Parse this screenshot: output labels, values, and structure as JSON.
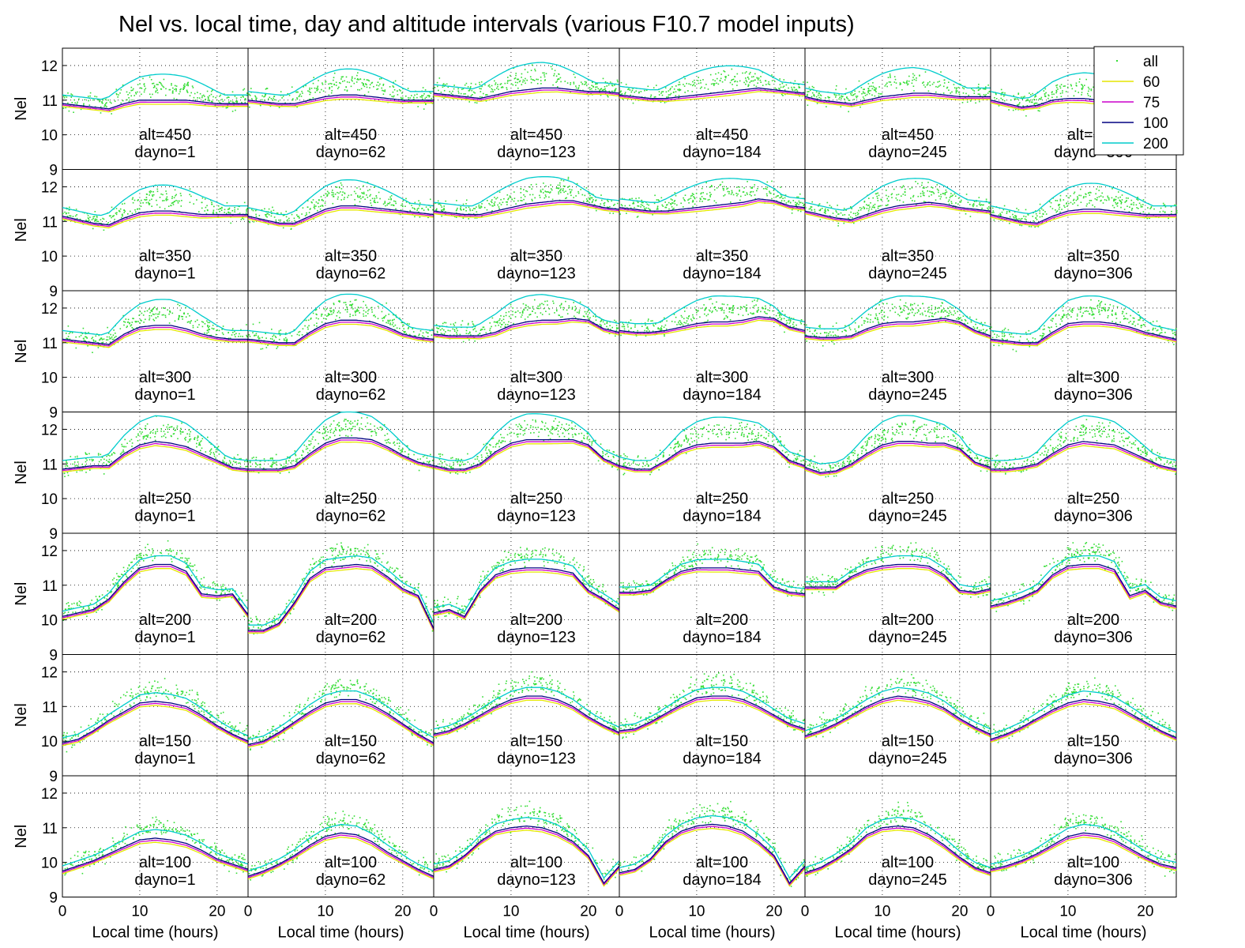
{
  "chart_data": {
    "type": "line",
    "title": "Nel vs. local time, day and altitude intervals (various F10.7 model inputs)",
    "ylabel": "Nel",
    "xlabel": "Local time (hours)",
    "xlim": [
      0,
      24
    ],
    "ylim": [
      9,
      12.5
    ],
    "xticks": [
      "0",
      "10",
      "20"
    ],
    "yticks": [
      "9",
      "10",
      "11",
      "12"
    ],
    "grid": true,
    "legend": {
      "position": "top-right",
      "entries": [
        {
          "label": "all",
          "color": "#33dd33",
          "style": "dot"
        },
        {
          "label": "60",
          "color": "#e6e600",
          "style": "line"
        },
        {
          "label": "75",
          "color": "#cc00cc",
          "style": "line"
        },
        {
          "label": "100",
          "color": "#000080",
          "style": "line"
        },
        {
          "label": "200",
          "color": "#00cccc",
          "style": "line"
        }
      ]
    },
    "series_colors": {
      "all": "#33dd33",
      "60": "#e6e600",
      "75": "#cc00cc",
      "100": "#000080",
      "200": "#00cccc"
    },
    "panel_label_format": {
      "alt": "alt=",
      "dayno": "dayno="
    },
    "altitudes": [
      450,
      350,
      300,
      250,
      200,
      150,
      100
    ],
    "daynos": [
      1,
      62,
      123,
      184,
      245,
      306
    ],
    "x": [
      0,
      2,
      4,
      6,
      8,
      10,
      12,
      14,
      16,
      18,
      20,
      22,
      24
    ],
    "curves_100": [
      [
        [
          10.9,
          10.85,
          10.8,
          10.75,
          10.9,
          11.0,
          11.0,
          11.0,
          11.0,
          10.95,
          10.9,
          10.9,
          10.9
        ],
        [
          11.0,
          10.95,
          10.9,
          10.9,
          11.0,
          11.1,
          11.15,
          11.15,
          11.1,
          11.05,
          11.0,
          11.0,
          11.0
        ],
        [
          11.2,
          11.15,
          11.1,
          11.05,
          11.15,
          11.25,
          11.3,
          11.35,
          11.35,
          11.3,
          11.25,
          11.25,
          11.2
        ],
        [
          11.15,
          11.1,
          11.05,
          11.05,
          11.1,
          11.15,
          11.2,
          11.25,
          11.3,
          11.35,
          11.3,
          11.25,
          11.2
        ],
        [
          11.1,
          11.0,
          10.95,
          10.9,
          11.0,
          11.1,
          11.15,
          11.2,
          11.2,
          11.15,
          11.1,
          11.1,
          11.1
        ],
        [
          11.0,
          10.9,
          10.8,
          10.85,
          11.0,
          11.05,
          11.05,
          11.0,
          11.0,
          11.0,
          11.0,
          11.0,
          11.0
        ]
      ],
      [
        [
          11.15,
          11.05,
          10.95,
          10.9,
          11.1,
          11.25,
          11.3,
          11.3,
          11.25,
          11.2,
          11.2,
          11.2,
          11.2
        ],
        [
          11.15,
          11.05,
          10.95,
          10.95,
          11.15,
          11.35,
          11.45,
          11.45,
          11.4,
          11.35,
          11.3,
          11.25,
          11.2
        ],
        [
          11.3,
          11.25,
          11.2,
          11.2,
          11.3,
          11.4,
          11.5,
          11.55,
          11.6,
          11.6,
          11.5,
          11.4,
          11.35
        ],
        [
          11.4,
          11.35,
          11.3,
          11.3,
          11.35,
          11.4,
          11.45,
          11.5,
          11.55,
          11.65,
          11.6,
          11.45,
          11.4
        ],
        [
          11.3,
          11.2,
          11.1,
          11.05,
          11.2,
          11.35,
          11.45,
          11.5,
          11.55,
          11.5,
          11.4,
          11.35,
          11.3
        ],
        [
          11.2,
          11.1,
          11.0,
          10.95,
          11.15,
          11.3,
          11.35,
          11.35,
          11.3,
          11.25,
          11.2,
          11.2,
          11.2
        ]
      ],
      [
        [
          11.1,
          11.05,
          11.0,
          10.95,
          11.25,
          11.45,
          11.5,
          11.5,
          11.4,
          11.25,
          11.15,
          11.1,
          11.1
        ],
        [
          11.1,
          11.05,
          11.0,
          11.0,
          11.3,
          11.55,
          11.65,
          11.65,
          11.6,
          11.45,
          11.25,
          11.15,
          11.1
        ],
        [
          11.25,
          11.2,
          11.2,
          11.2,
          11.3,
          11.5,
          11.6,
          11.65,
          11.65,
          11.7,
          11.65,
          11.4,
          11.3
        ],
        [
          11.35,
          11.3,
          11.3,
          11.35,
          11.45,
          11.55,
          11.6,
          11.6,
          11.65,
          11.75,
          11.7,
          11.45,
          11.35
        ],
        [
          11.2,
          11.15,
          11.15,
          11.2,
          11.4,
          11.55,
          11.6,
          11.6,
          11.65,
          11.7,
          11.6,
          11.35,
          11.2
        ],
        [
          11.1,
          11.05,
          11.0,
          11.0,
          11.3,
          11.55,
          11.6,
          11.6,
          11.55,
          11.45,
          11.3,
          11.2,
          11.1
        ]
      ],
      [
        [
          10.85,
          10.9,
          10.95,
          10.95,
          11.3,
          11.55,
          11.65,
          11.6,
          11.5,
          11.3,
          11.1,
          10.9,
          10.85
        ],
        [
          10.85,
          10.85,
          10.85,
          10.95,
          11.3,
          11.6,
          11.75,
          11.75,
          11.7,
          11.5,
          11.25,
          11.05,
          10.95
        ],
        [
          10.95,
          10.85,
          10.85,
          11.0,
          11.35,
          11.6,
          11.7,
          11.7,
          11.7,
          11.7,
          11.55,
          11.15,
          10.95
        ],
        [
          10.95,
          10.85,
          10.85,
          11.1,
          11.4,
          11.55,
          11.6,
          11.6,
          11.6,
          11.65,
          11.5,
          11.1,
          10.95
        ],
        [
          10.9,
          10.75,
          10.8,
          11.0,
          11.3,
          11.55,
          11.65,
          11.65,
          11.6,
          11.6,
          11.45,
          11.05,
          10.9
        ],
        [
          10.85,
          10.85,
          10.9,
          11.0,
          11.3,
          11.55,
          11.65,
          11.6,
          11.55,
          11.35,
          11.15,
          10.95,
          10.85
        ]
      ],
      [
        [
          10.1,
          10.2,
          10.3,
          10.6,
          11.1,
          11.5,
          11.6,
          11.6,
          11.4,
          10.75,
          10.7,
          10.75,
          10.15
        ],
        [
          9.7,
          9.7,
          9.9,
          10.5,
          11.2,
          11.5,
          11.55,
          11.6,
          11.55,
          11.25,
          10.9,
          10.7,
          9.75
        ],
        [
          10.2,
          10.3,
          10.1,
          10.85,
          11.3,
          11.45,
          11.5,
          11.5,
          11.45,
          11.35,
          10.85,
          10.6,
          10.3
        ],
        [
          10.8,
          10.8,
          10.85,
          11.15,
          11.4,
          11.5,
          11.5,
          11.5,
          11.45,
          11.4,
          10.95,
          10.8,
          10.75
        ],
        [
          10.95,
          10.95,
          10.95,
          11.25,
          11.45,
          11.55,
          11.6,
          11.6,
          11.55,
          11.3,
          10.85,
          10.8,
          10.9
        ],
        [
          10.4,
          10.5,
          10.65,
          10.85,
          11.3,
          11.55,
          11.6,
          11.6,
          11.45,
          10.7,
          10.85,
          10.5,
          10.4
        ]
      ],
      [
        [
          9.95,
          10.05,
          10.3,
          10.6,
          10.85,
          11.1,
          11.15,
          11.1,
          11.0,
          10.75,
          10.45,
          10.2,
          10.0
        ],
        [
          9.9,
          10.0,
          10.25,
          10.55,
          10.85,
          11.1,
          11.2,
          11.2,
          11.05,
          10.8,
          10.5,
          10.2,
          9.95
        ],
        [
          10.2,
          10.3,
          10.5,
          10.75,
          11.0,
          11.2,
          11.3,
          11.3,
          11.2,
          11.0,
          10.7,
          10.45,
          10.25
        ],
        [
          10.3,
          10.35,
          10.55,
          10.8,
          11.05,
          11.25,
          11.3,
          11.3,
          11.2,
          11.0,
          10.75,
          10.5,
          10.35
        ],
        [
          10.15,
          10.3,
          10.5,
          10.75,
          11.0,
          11.2,
          11.3,
          11.25,
          11.15,
          10.95,
          10.65,
          10.4,
          10.2
        ],
        [
          10.05,
          10.2,
          10.4,
          10.65,
          10.9,
          11.1,
          11.2,
          11.15,
          11.05,
          10.8,
          10.55,
          10.3,
          10.1
        ]
      ],
      [
        [
          9.75,
          9.9,
          10.05,
          10.25,
          10.45,
          10.65,
          10.7,
          10.65,
          10.55,
          10.35,
          10.1,
          9.95,
          9.8
        ],
        [
          9.6,
          9.75,
          9.95,
          10.2,
          10.5,
          10.75,
          10.85,
          10.8,
          10.6,
          10.3,
          10.05,
          9.8,
          9.6
        ],
        [
          9.8,
          9.9,
          10.2,
          10.6,
          10.9,
          11.0,
          11.05,
          11.0,
          10.85,
          10.6,
          10.2,
          9.4,
          9.9
        ],
        [
          9.7,
          9.8,
          10.1,
          10.6,
          10.9,
          11.05,
          11.1,
          11.05,
          10.9,
          10.6,
          10.2,
          9.4,
          9.9
        ],
        [
          9.7,
          9.85,
          10.1,
          10.4,
          10.8,
          11.0,
          11.05,
          11.0,
          10.8,
          10.5,
          10.15,
          9.85,
          9.7
        ],
        [
          9.8,
          9.9,
          10.05,
          10.25,
          10.5,
          10.75,
          10.85,
          10.8,
          10.65,
          10.4,
          10.15,
          9.95,
          9.85
        ]
      ]
    ]
  }
}
